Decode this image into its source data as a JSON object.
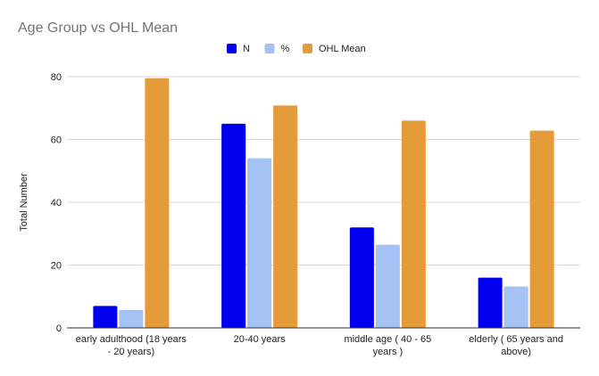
{
  "chart_data": {
    "type": "bar",
    "title": "Age Group vs OHL Mean",
    "xlabel": "",
    "ylabel": "Total Number",
    "ylim": [
      0,
      80
    ],
    "yticks": [
      0,
      20,
      40,
      60,
      80
    ],
    "grid": true,
    "legend_position": "top",
    "categories": [
      [
        "early adulthood (18 years",
        "- 20 years)"
      ],
      [
        "20-40 years"
      ],
      [
        "middle age ( 40 - 65",
        "years )"
      ],
      [
        "elderly ( 65 years and",
        "above)"
      ]
    ],
    "series": [
      {
        "name": "N",
        "color": "#0000ee",
        "values": [
          7,
          65,
          32,
          16
        ]
      },
      {
        "name": "%",
        "color": "#a4c2f4",
        "values": [
          5.7,
          54,
          26.5,
          13.2
        ]
      },
      {
        "name": "OHL Mean",
        "color": "#e69b3a",
        "values": [
          79.5,
          70.8,
          66,
          62.8
        ]
      }
    ]
  }
}
